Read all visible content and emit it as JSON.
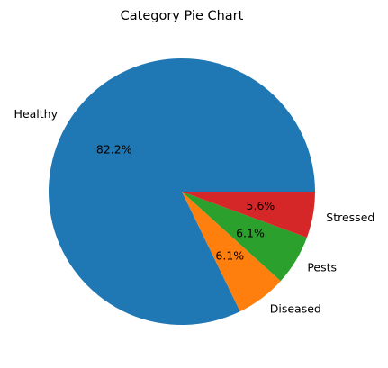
{
  "chart_data": {
    "type": "pie",
    "title": "Category Pie Chart",
    "categories": [
      "Healthy",
      "Diseased",
      "Pests",
      "Stressed"
    ],
    "values": [
      82.2,
      6.1,
      6.1,
      5.6
    ],
    "value_labels": [
      "82.2%",
      "6.1%",
      "6.1%",
      "5.6%"
    ],
    "colors": [
      "#1f77b4",
      "#ff7f0e",
      "#2ca02c",
      "#d62728"
    ],
    "start_angle_deg": 0,
    "direction": "counterclockwise"
  }
}
